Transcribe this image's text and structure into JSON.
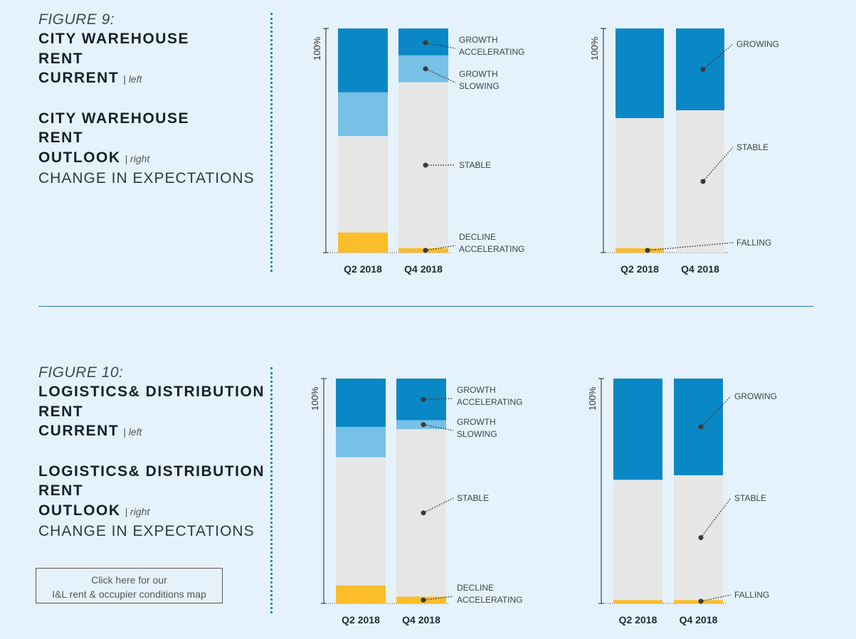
{
  "figures": [
    {
      "label": "FIGURE 9:",
      "heading1": [
        "CITY WAREHOUSE",
        "RENT",
        "CURRENT"
      ],
      "tag1": "| left",
      "heading2": [
        "CITY WAREHOUSE",
        "RENT",
        "OUTLOOK"
      ],
      "tag2": "| right",
      "subtitle": "CHANGE IN EXPECTATIONS"
    },
    {
      "label": "FIGURE 10:",
      "heading1": [
        "LOGISTICS& DISTRIBUTION",
        "RENT",
        "CURRENT"
      ],
      "tag1": "| left",
      "heading2": [
        "LOGISTICS& DISTRIBUTION",
        "RENT",
        "OUTLOOK"
      ],
      "tag2": "| right",
      "subtitle": "CHANGE IN EXPECTATIONS"
    }
  ],
  "map_button": {
    "line1": "Click here for our",
    "line2": "I&L rent & occupier conditions map"
  },
  "colors": {
    "growth_accelerating": "#0a88c6",
    "growth_slowing": "#77c0e6",
    "stable": "#e6e6e6",
    "decline_accelerating": "#fbbd29",
    "growing": "#0a88c6",
    "falling": "#fbbd29"
  },
  "chart_data": [
    {
      "type": "bar",
      "stacked": true,
      "title": "City Warehouse Rent Current",
      "categories": [
        "Q2 2018",
        "Q4 2018"
      ],
      "ylabel": "100%",
      "ylim": [
        0,
        100
      ],
      "series": [
        {
          "name": "DECLINE ACCELERATING",
          "values": [
            9,
            2
          ]
        },
        {
          "name": "STABLE",
          "values": [
            43,
            74
          ]
        },
        {
          "name": "GROWTH SLOWING",
          "values": [
            19.5,
            12
          ]
        },
        {
          "name": "GROWTH ACCELERATING",
          "values": [
            28.5,
            12
          ]
        }
      ]
    },
    {
      "type": "bar",
      "stacked": true,
      "title": "City Warehouse Rent Outlook",
      "categories": [
        "Q2 2018",
        "Q4 2018"
      ],
      "ylabel": "100%",
      "ylim": [
        0,
        100
      ],
      "series": [
        {
          "name": "FALLING",
          "values": [
            2,
            0
          ]
        },
        {
          "name": "STABLE",
          "values": [
            58,
            63.5
          ]
        },
        {
          "name": "GROWING",
          "values": [
            40,
            36.5
          ]
        }
      ]
    },
    {
      "type": "bar",
      "stacked": true,
      "title": "Logistics & Distribution Rent Current",
      "categories": [
        "Q2 2018",
        "Q4 2018"
      ],
      "ylabel": "100%",
      "ylim": [
        0,
        100
      ],
      "series": [
        {
          "name": "DECLINE ACCELERATING",
          "values": [
            8,
            3
          ]
        },
        {
          "name": "STABLE",
          "values": [
            57,
            74.5
          ]
        },
        {
          "name": "GROWTH SLOWING",
          "values": [
            13.5,
            4
          ]
        },
        {
          "name": "GROWTH ACCELERATING",
          "values": [
            21.5,
            18.5
          ]
        }
      ]
    },
    {
      "type": "bar",
      "stacked": true,
      "title": "Logistics & Distribution Rent Outlook",
      "categories": [
        "Q2 2018",
        "Q4 2018"
      ],
      "ylabel": "100%",
      "ylim": [
        0,
        100
      ],
      "series": [
        {
          "name": "FALLING",
          "values": [
            1.5,
            1.5
          ]
        },
        {
          "name": "STABLE",
          "values": [
            53.5,
            55.5
          ]
        },
        {
          "name": "GROWING",
          "values": [
            45,
            43
          ]
        }
      ]
    }
  ]
}
